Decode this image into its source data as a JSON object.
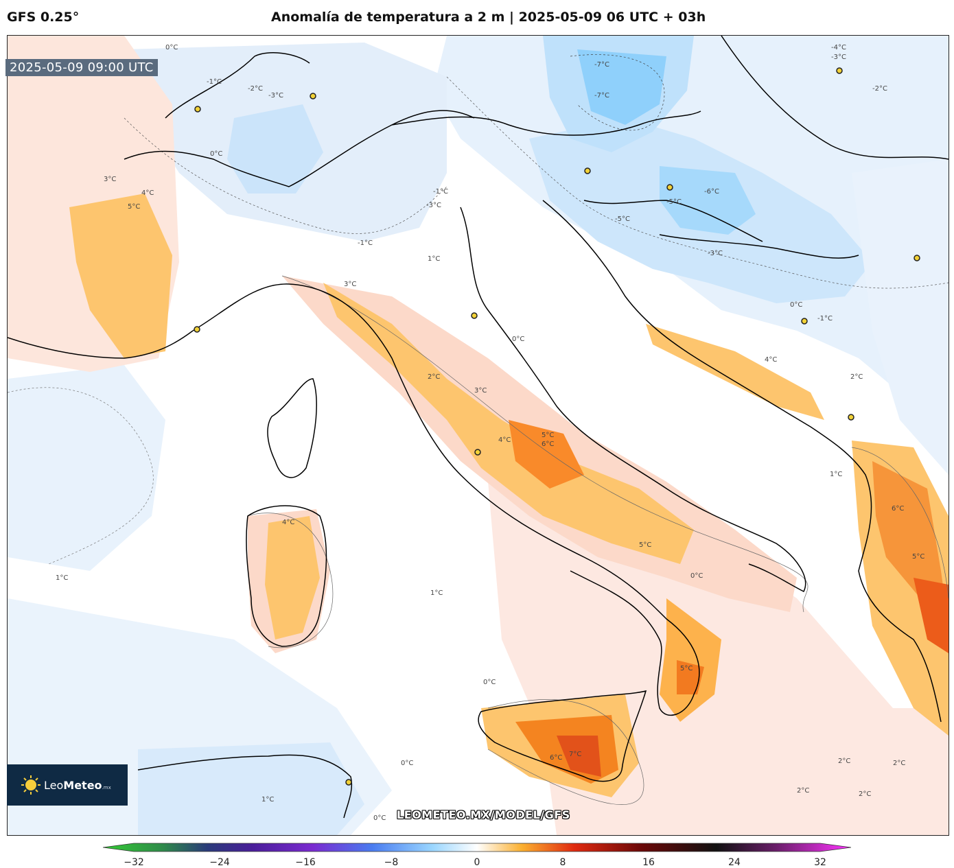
{
  "header": {
    "model": "GFS 0.25°",
    "title": "Anomalía de temperatura a 2 m | 2025-05-09 06 UTC + 03h"
  },
  "map": {
    "valid_time": "2025-05-09 09:00 UTC",
    "watermark": "LEOMETEO.MX/MODEL/GFS",
    "contour_labels": [
      "-7°C",
      "-6°C",
      "-5°C",
      "-4°C",
      "-3°C",
      "-2°C",
      "-1°C",
      "0°C",
      "1°C",
      "2°C",
      "3°C",
      "4°C",
      "5°C",
      "6°C",
      "7°C"
    ]
  },
  "logo": {
    "brand_light": "Leo",
    "brand_bold": "Meteo",
    "suffix": ".mx"
  },
  "colorbar": {
    "min": -32,
    "max": 32,
    "tick_labels": [
      "−32",
      "−24",
      "−16",
      "−8",
      "0",
      "8",
      "16",
      "24",
      "32"
    ],
    "tick_values": [
      -32,
      -24,
      -16,
      -8,
      0,
      8,
      16,
      24,
      32
    ],
    "colors": {
      "cold_extreme": "#33cc33",
      "deep_cold": "#2a3a7a",
      "purple": "#7a2ad0",
      "blue": "#4a7cf0",
      "light_blue": "#9ad6ff",
      "neutral": "#ffffff",
      "orange": "#fbb030",
      "red": "#e02a10",
      "dark_red": "#6a0808",
      "black": "#111111",
      "magenta": "#ff33ff"
    }
  }
}
